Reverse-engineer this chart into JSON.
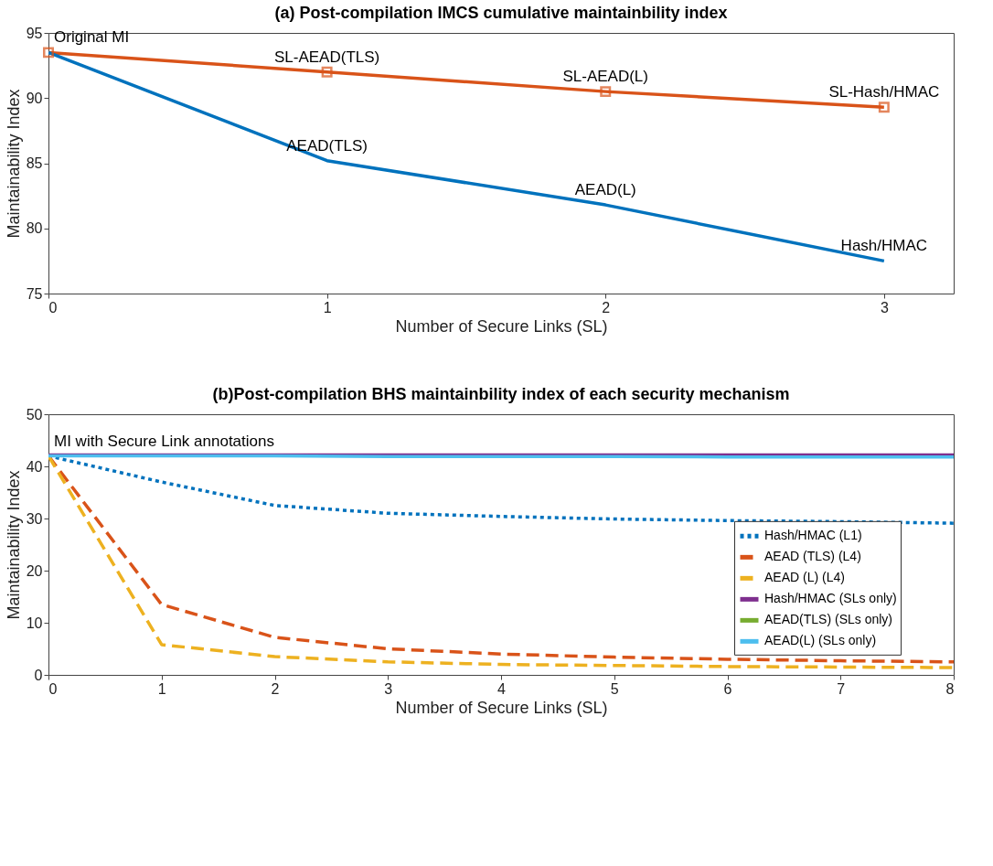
{
  "chart_data": [
    {
      "type": "line",
      "title": "(a) Post-compilation IMCS cumulative maintainbility index",
      "xlabel": "Number of Secure Links (SL)",
      "ylabel": "Maintainability Index",
      "x": [
        0,
        1,
        2,
        3
      ],
      "xlim": [
        0,
        3.25
      ],
      "xticks": [
        0,
        1,
        2,
        3
      ],
      "ylim": [
        75,
        95
      ],
      "yticks": [
        75,
        80,
        85,
        90,
        95
      ],
      "grid": false,
      "legend": false,
      "series": [
        {
          "color": "#d95319",
          "values": [
            93.5,
            92.0,
            90.5,
            89.3
          ],
          "marker": "square",
          "line_style": "solid"
        },
        {
          "color": "#0072bd",
          "values": [
            93.5,
            85.2,
            81.8,
            77.5
          ],
          "marker": "none",
          "line_style": "solid"
        }
      ],
      "annotations": [
        {
          "text": "Original MI",
          "x": 0,
          "y": 93.5
        },
        {
          "text": "SL-AEAD(TLS)",
          "x": 1,
          "y": 92.0
        },
        {
          "text": "SL-AEAD(L)",
          "x": 2,
          "y": 90.5
        },
        {
          "text": "SL-Hash/HMAC",
          "x": 3,
          "y": 89.3
        },
        {
          "text": "AEAD(TLS)",
          "x": 1,
          "y": 85.2
        },
        {
          "text": "AEAD(L)",
          "x": 2,
          "y": 81.8
        },
        {
          "text": "Hash/HMAC",
          "x": 3,
          "y": 77.5
        }
      ]
    },
    {
      "type": "line",
      "title": "(b)Post-compilation BHS maintainbility index of each security mechanism",
      "xlabel": "Number of Secure Links (SL)",
      "ylabel": "Maintainability Index",
      "x": [
        0,
        1,
        2,
        3,
        4,
        5,
        6,
        7,
        8
      ],
      "xlim": [
        0,
        8
      ],
      "xticks": [
        0,
        1,
        2,
        3,
        4,
        5,
        6,
        7,
        8
      ],
      "ylim": [
        0,
        50
      ],
      "yticks": [
        0,
        10,
        20,
        30,
        40,
        50
      ],
      "grid": false,
      "legend": "right",
      "series": [
        {
          "name": "Hash/HMAC (L1)",
          "color": "#0072bd",
          "line_style": "dotted",
          "values": [
            42,
            37,
            32.5,
            31,
            30.4,
            29.9,
            29.6,
            29.4,
            29.1
          ]
        },
        {
          "name": "AEAD (TLS) (L4)",
          "color": "#d95319",
          "line_style": "dashed",
          "values": [
            42,
            13.5,
            7.2,
            5,
            4,
            3.4,
            3,
            2.7,
            2.5
          ]
        },
        {
          "name": "AEAD (L) (L4)",
          "color": "#edb120",
          "line_style": "dashed",
          "values": [
            42,
            5.8,
            3.5,
            2.5,
            2,
            1.8,
            1.6,
            1.5,
            1.4
          ]
        },
        {
          "name": "Hash/HMAC (SLs only)",
          "color": "#7e2f8e",
          "line_style": "solid",
          "values": [
            42.2,
            42.2,
            42.2,
            42.2,
            42.2,
            42.2,
            42.2,
            42.2,
            42.2
          ]
        },
        {
          "name": "AEAD(TLS) (SLs only)",
          "color": "#77ac30",
          "line_style": "solid",
          "values": [
            null,
            null,
            null,
            null,
            null,
            null,
            null,
            null,
            null
          ]
        },
        {
          "name": "AEAD(L) (SLs only)",
          "color": "#4dbeee",
          "line_style": "solid",
          "values": [
            42.0,
            42.0,
            42.0,
            41.9,
            41.9,
            41.9,
            41.8,
            41.8,
            41.8
          ]
        }
      ],
      "annotations": [
        {
          "text": "MI with Secure Link annotations",
          "x": 0,
          "y": 42
        }
      ]
    }
  ]
}
